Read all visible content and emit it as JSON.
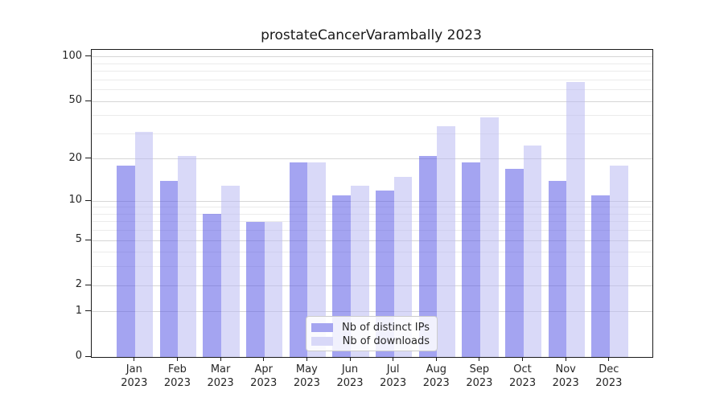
{
  "title": "prostateCancerVarambally 2023",
  "colors": {
    "bar_ips_apparent": "#a5a5f0",
    "bar_ips_rgba": "rgba(90,90,230,0.55)",
    "bar_downloads_apparent": "#d8d8f8",
    "bar_downloads_rgba": "rgba(185,185,242,0.55)",
    "grid_major": "#d6d6d6",
    "grid_minor": "#ebebeb",
    "axis": "#1a1a1a",
    "text": "#262626"
  },
  "chart_data": {
    "type": "bar",
    "title": "prostateCancerVarambally 2023",
    "xlabel": "",
    "ylabel": "",
    "yscale": "log1p",
    "ylim": [
      0,
      112
    ],
    "grid": true,
    "legend_position": "lower center",
    "categories": [
      "Jan",
      "Feb",
      "Mar",
      "Apr",
      "May",
      "Jun",
      "Jul",
      "Aug",
      "Sep",
      "Oct",
      "Nov",
      "Dec"
    ],
    "category_year": "2023",
    "yticks_major": [
      0,
      1,
      2,
      5,
      10,
      20,
      50,
      100
    ],
    "yticks_minor": [
      3,
      4,
      6,
      7,
      8,
      9,
      30,
      40,
      60,
      70,
      80,
      90
    ],
    "series": [
      {
        "name": "Nb of distinct IPs",
        "values": [
          18,
          14,
          8,
          7,
          19,
          11,
          12,
          21,
          19,
          17,
          14,
          11
        ],
        "color": "rgba(90,90,230,0.55)",
        "swatch": "#a5a5f0"
      },
      {
        "name": "Nb of downloads",
        "values": [
          31,
          21,
          13,
          7,
          19,
          13,
          15,
          34,
          39,
          25,
          68,
          18
        ],
        "color": "rgba(185,185,242,0.55)",
        "swatch": "#d8d8f8"
      }
    ]
  }
}
